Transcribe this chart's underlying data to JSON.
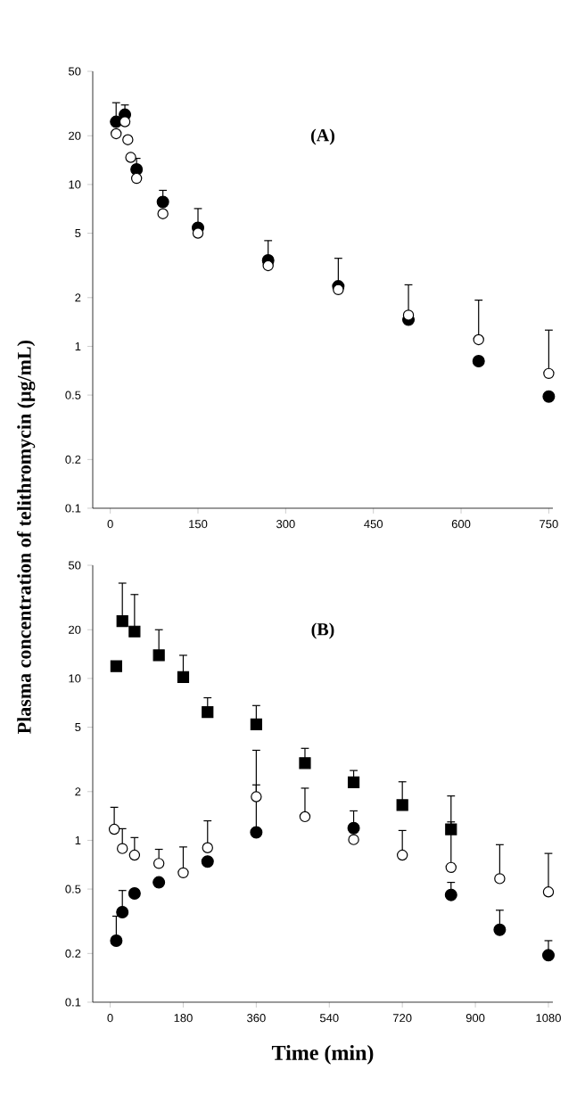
{
  "chart_data": [
    {
      "type": "scatter",
      "xlim": [
        -30,
        757
      ],
      "xticks": [
        0,
        150,
        300,
        450,
        600,
        750
      ],
      "ylim": [
        0.1,
        50
      ],
      "yticks": [
        0.1,
        0.2,
        0.5,
        1,
        2,
        5,
        10,
        20,
        50
      ],
      "log": "y",
      "annotations": [
        "(A)"
      ],
      "series": [
        {
          "marker": "circle",
          "color": "#000000",
          "x": [
            10,
            25,
            45,
            90,
            150,
            270,
            390,
            510,
            630,
            750
          ],
          "values": [
            24.4,
            27,
            12.4,
            7.8,
            5.4,
            3.4,
            2.35,
            1.46,
            0.81,
            0.49
          ],
          "errors": [
            [
              24.4,
              32
            ],
            [
              27,
              31
            ],
            [
              12.4,
              14.5
            ],
            [
              7.8,
              9.2
            ],
            [
              5.4,
              7.1
            ],
            [
              3.4,
              4.5
            ],
            [
              2.35,
              3.5
            ],
            [
              1.46,
              2.4
            ],
            null,
            null
          ]
        },
        {
          "marker": "circle",
          "color": "#ffffff",
          "x": [
            10,
            25,
            30,
            35,
            45,
            90,
            150,
            270,
            390,
            510,
            630,
            750
          ],
          "values": [
            20.6,
            24.4,
            18.9,
            14.7,
            10.9,
            6.6,
            5.0,
            3.15,
            2.24,
            1.56,
            1.1,
            0.68
          ],
          "errors": [
            null,
            null,
            null,
            null,
            null,
            null,
            null,
            null,
            null,
            null,
            [
              1.1,
              1.93
            ],
            [
              0.68,
              1.26
            ]
          ]
        }
      ]
    },
    {
      "type": "scatter",
      "xlabel": "Time (min)",
      "ylabel": "Plasma concentration of telithromycin (μg/mL)",
      "xlim": [
        -43,
        1091
      ],
      "xticks": [
        0,
        180,
        360,
        540,
        720,
        900,
        1080
      ],
      "ylim": [
        0.1,
        50
      ],
      "yticks": [
        0.1,
        0.2,
        0.5,
        1,
        2,
        5,
        10,
        20,
        50
      ],
      "log": "y",
      "annotations": [
        "(B)"
      ],
      "series": [
        {
          "marker": "square",
          "color": "#000000",
          "x": [
            15,
            30,
            60,
            120,
            180,
            240,
            360,
            480,
            600,
            720,
            840
          ],
          "values": [
            11.9,
            22.6,
            19.5,
            13.9,
            10.2,
            6.2,
            5.2,
            3.0,
            2.28,
            1.65,
            1.17
          ],
          "errors": [
            null,
            [
              22.6,
              38.8
            ],
            [
              19.5,
              33
            ],
            [
              13.9,
              20
            ],
            [
              10.2,
              13.9
            ],
            [
              6.2,
              7.6
            ],
            [
              5.2,
              6.8
            ],
            [
              3.0,
              3.7
            ],
            [
              2.28,
              2.7
            ],
            [
              1.65,
              2.3
            ],
            [
              1.17,
              1.88
            ]
          ]
        },
        {
          "marker": "circle",
          "color": "#000000",
          "x": [
            15,
            30,
            60,
            120,
            240,
            360,
            600,
            840,
            960,
            1080
          ],
          "values": [
            0.24,
            0.36,
            0.47,
            0.55,
            0.74,
            1.12,
            1.19,
            0.46,
            0.28,
            0.195
          ],
          "errors": [
            [
              0.24,
              0.34
            ],
            [
              0.36,
              0.49
            ],
            null,
            null,
            null,
            [
              1.12,
              2.2
            ],
            [
              1.19,
              1.52
            ],
            [
              0.46,
              0.55
            ],
            [
              0.28,
              0.37
            ],
            [
              0.195,
              0.24
            ]
          ]
        },
        {
          "marker": "circle",
          "color": "#ffffff",
          "x": [
            10,
            30,
            60,
            120,
            180,
            240,
            360,
            480,
            600,
            720,
            840,
            960,
            1080
          ],
          "values": [
            1.17,
            0.89,
            0.81,
            0.72,
            0.63,
            0.9,
            1.86,
            1.4,
            1.01,
            0.81,
            0.68,
            0.58,
            0.48
          ],
          "errors": [
            [
              1.17,
              1.6
            ],
            [
              0.89,
              1.18
            ],
            [
              0.81,
              1.04
            ],
            [
              0.72,
              0.88
            ],
            [
              0.63,
              0.91
            ],
            [
              0.9,
              1.32
            ],
            [
              1.86,
              3.6
            ],
            [
              1.4,
              2.1
            ],
            null,
            [
              0.81,
              1.15
            ],
            [
              0.68,
              1.3
            ],
            [
              0.58,
              0.94
            ],
            [
              0.48,
              0.83
            ]
          ]
        }
      ]
    }
  ]
}
